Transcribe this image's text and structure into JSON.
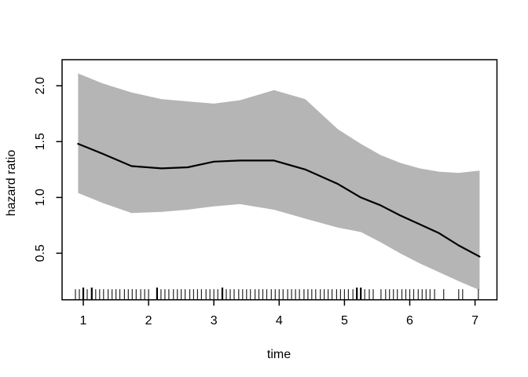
{
  "figure": {
    "background_color": "#ffffff",
    "band_color": "#b5b5b5",
    "line_color": "#000000",
    "axis_color": "#000000"
  },
  "chart_data": {
    "type": "line",
    "title": "",
    "xlabel": "time",
    "ylabel": "hazard ratio",
    "x_tick_labels": [
      "1",
      "2",
      "3",
      "4",
      "5",
      "6",
      "7"
    ],
    "x_tick_values": [
      1,
      2,
      3,
      4,
      5,
      6,
      7
    ],
    "y_tick_labels": [
      "0.5",
      "1.0",
      "1.5",
      "2.0"
    ],
    "y_tick_values": [
      0.5,
      1.0,
      1.5,
      2.0
    ],
    "xlim": [
      0.68,
      7.31
    ],
    "ylim": [
      0.08,
      2.23
    ],
    "grid": false,
    "legend": "none",
    "x": [
      0.92,
      1.3,
      1.74,
      2.2,
      2.6,
      3.0,
      3.4,
      3.92,
      4.4,
      4.9,
      5.25,
      5.55,
      5.85,
      6.15,
      6.45,
      6.75,
      7.07
    ],
    "series": [
      {
        "name": "hazard ratio estimate",
        "role": "fit",
        "values": [
          1.48,
          1.39,
          1.28,
          1.26,
          1.27,
          1.32,
          1.33,
          1.33,
          1.25,
          1.12,
          1.0,
          0.93,
          0.84,
          0.76,
          0.68,
          0.57,
          0.47
        ]
      },
      {
        "name": "upper confidence band",
        "role": "band-upper",
        "values": [
          2.11,
          2.02,
          1.94,
          1.88,
          1.86,
          1.84,
          1.87,
          1.96,
          1.88,
          1.61,
          1.48,
          1.38,
          1.31,
          1.26,
          1.23,
          1.22,
          1.24
        ]
      },
      {
        "name": "lower confidence band",
        "role": "band-lower",
        "values": [
          1.04,
          0.95,
          0.86,
          0.87,
          0.89,
          0.92,
          0.94,
          0.89,
          0.81,
          0.73,
          0.69,
          0.6,
          0.5,
          0.41,
          0.33,
          0.25,
          0.17
        ]
      }
    ],
    "rug_x": [
      0.88,
      0.94,
      1.0,
      1.06,
      1.13,
      1.19,
      1.25,
      1.31,
      1.38,
      1.44,
      1.5,
      1.56,
      1.63,
      1.69,
      1.75,
      1.81,
      1.88,
      1.94,
      2.0,
      2.13,
      2.19,
      2.25,
      2.31,
      2.38,
      2.44,
      2.5,
      2.56,
      2.63,
      2.69,
      2.75,
      2.81,
      2.88,
      2.94,
      3.0,
      3.06,
      3.13,
      3.19,
      3.25,
      3.31,
      3.38,
      3.44,
      3.5,
      3.56,
      3.63,
      3.69,
      3.75,
      3.81,
      3.88,
      3.94,
      4.0,
      4.06,
      4.13,
      4.19,
      4.25,
      4.31,
      4.38,
      4.44,
      4.5,
      4.56,
      4.63,
      4.69,
      4.75,
      4.81,
      4.88,
      4.94,
      5.0,
      5.06,
      5.13,
      5.19,
      5.25,
      5.31,
      5.38,
      5.44,
      5.56,
      5.63,
      5.69,
      5.75,
      5.81,
      5.88,
      5.94,
      6.0,
      6.06,
      6.13,
      6.19,
      6.25,
      6.31,
      6.38,
      6.52,
      6.75,
      6.81,
      7.05
    ],
    "rug_bold_x": [
      1.0,
      1.13,
      2.13,
      3.13,
      5.19,
      5.25
    ]
  }
}
